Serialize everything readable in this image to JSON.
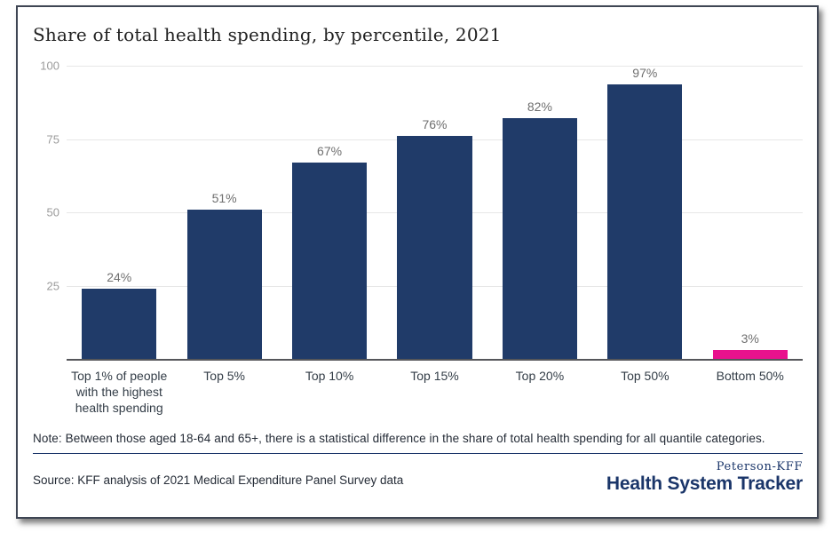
{
  "card": {
    "title": "Share of total health spending, by percentile, 2021",
    "note": "Note: Between those aged 18-64 and 65+, there is a statistical difference in the share of total health spending for all quantile categories.",
    "source": "Source: KFF analysis of 2021 Medical Expenditure Panel Survey data",
    "logo": {
      "top": "Peterson-KFF",
      "main": "Health System Tracker"
    }
  },
  "chart_data": {
    "type": "bar",
    "title": "Share of total health spending, by percentile, 2021",
    "categories": [
      "Top 1% of people\nwith the highest\nhealth spending",
      "Top 5%",
      "Top 10%",
      "Top 15%",
      "Top 20%",
      "Top 50%",
      "Bottom 50%"
    ],
    "values": [
      24,
      51,
      67,
      76,
      82,
      97,
      3
    ],
    "data_labels": [
      "24%",
      "51%",
      "67%",
      "76%",
      "82%",
      "97%",
      "3%"
    ],
    "yticks": [
      25,
      50,
      75,
      100
    ],
    "ylim": [
      0,
      100
    ],
    "xlabel": "",
    "ylabel": "",
    "grid": "horizontal",
    "legend": "none",
    "bar_colors": [
      "#203b69",
      "#203b69",
      "#203b69",
      "#203b69",
      "#203b69",
      "#203b69",
      "#e9128d"
    ],
    "colors": {
      "navy": "#203b69",
      "magenta": "#e9128d",
      "gridline": "#e7e7e7",
      "axis_line": "#55565a",
      "ytick_label": "#9b9b9b",
      "value_label": "#6f6f6f",
      "xtick_label": "#333d47",
      "logo_navy": "#1a3569"
    }
  }
}
